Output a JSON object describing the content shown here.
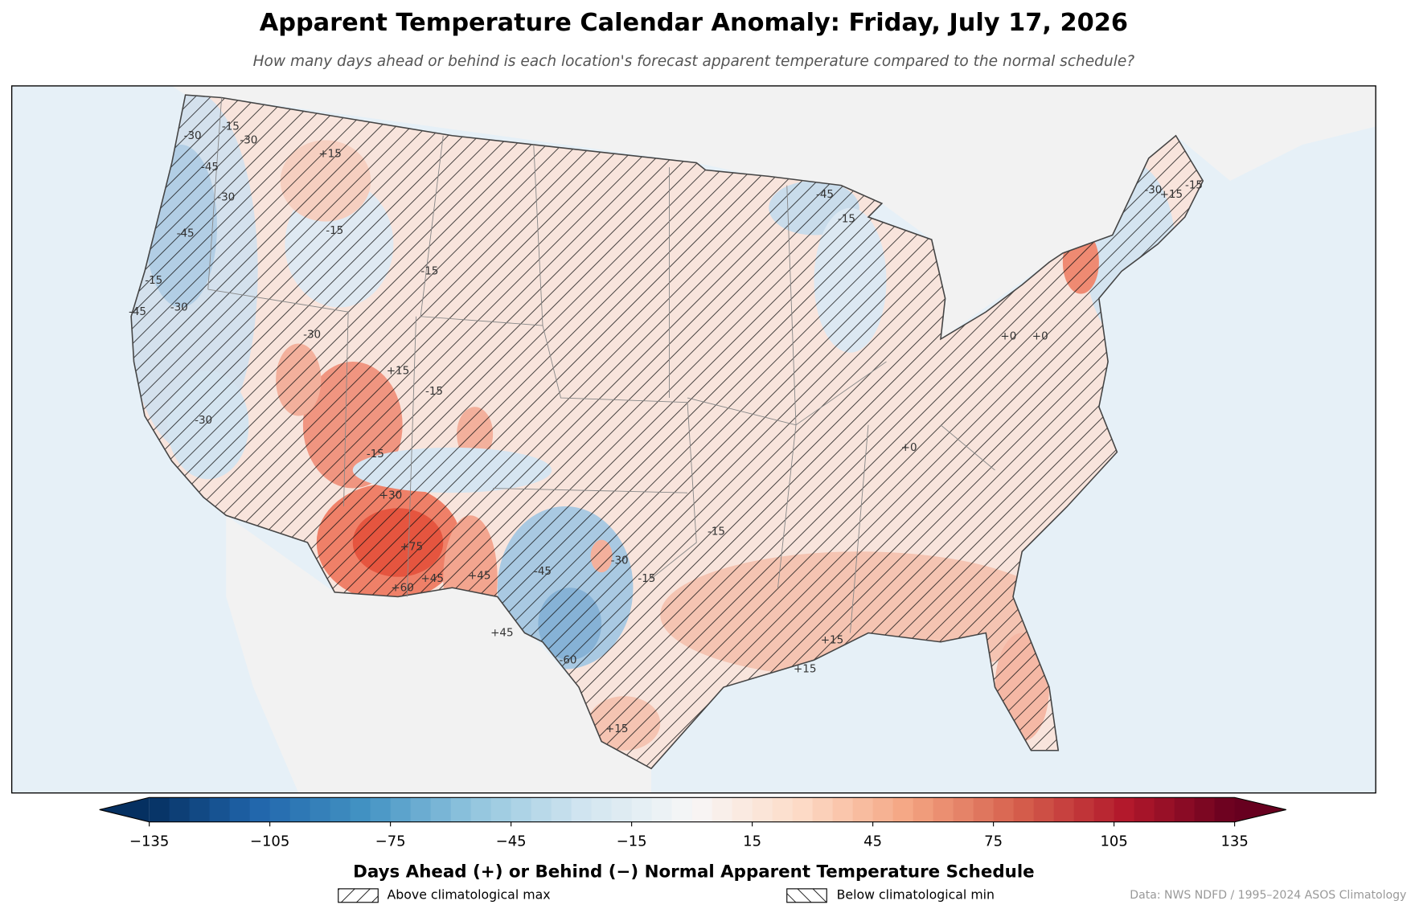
{
  "title": "Apparent Temperature Calendar Anomaly: Friday, July 17, 2026",
  "subtitle": "How many days ahead or behind is each location's forecast apparent temperature compared to the normal schedule?",
  "colorbar": {
    "label": "Days Ahead (+) or Behind (−) Normal Apparent Temperature Schedule",
    "colormap": "RdBu_r",
    "lim": [
      -135,
      135
    ],
    "ticks": [
      {
        "value": -135,
        "label": "−135"
      },
      {
        "value": -105,
        "label": "−105"
      },
      {
        "value": -75,
        "label": "−75"
      },
      {
        "value": -45,
        "label": "−45"
      },
      {
        "value": -15,
        "label": "−15"
      },
      15,
      45,
      75,
      105,
      135
    ]
  },
  "legend": [
    "Above climatological max",
    "Below climatological min"
  ],
  "credit": "Data: NWS NDFD / 1995–2024 ASOS Climatology",
  "contour_labels": [
    "-30",
    "-15",
    "-30",
    "-45",
    "-30",
    "-45",
    "+15",
    "-15",
    "-15",
    "-15",
    "-45",
    "-30",
    "-30",
    "-30",
    "+15",
    "-15",
    "+30",
    "+75",
    "+60",
    "+45",
    "+45",
    "+45",
    "-45",
    "-60",
    "-30",
    "-15",
    "-15",
    "+15",
    "+15",
    "-15",
    "-45",
    "-15",
    "+0",
    "-30",
    "+15",
    "-15",
    "+0",
    "+0",
    "+15"
  ]
}
